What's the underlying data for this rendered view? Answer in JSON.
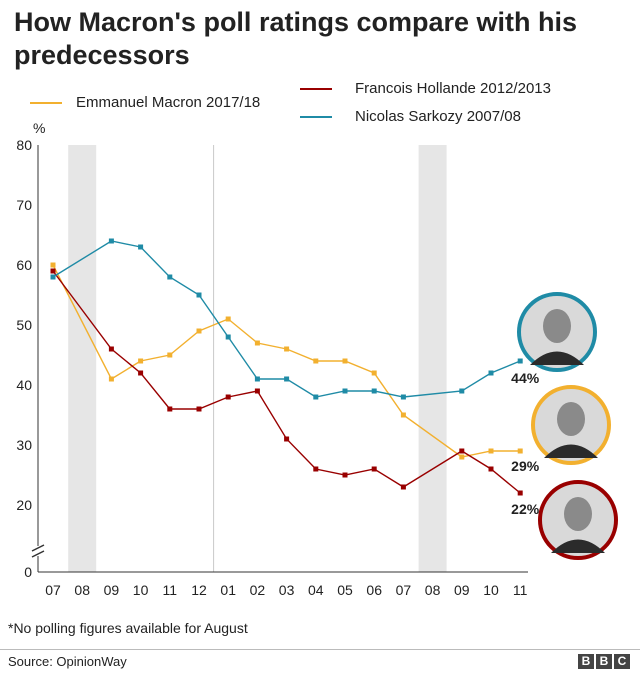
{
  "title": "How Macron's poll ratings compare with his predecessors",
  "legend": [
    {
      "label": "Emmanuel Macron 2017/18",
      "color": "#f2b02f"
    },
    {
      "label": "Francois Hollande 2012/2013",
      "color": "#990000"
    },
    {
      "label": "Nicolas Sarkozy 2007/08",
      "color": "#1f8ba6"
    }
  ],
  "y_unit_label": "%",
  "note": "*No polling figures available for August",
  "source": "Source: OpinionWay",
  "logo": [
    "B",
    "B",
    "C"
  ],
  "chart_data": {
    "type": "line",
    "title": "How Macron's poll ratings compare with his predecessors",
    "xlabel": "",
    "ylabel": "%",
    "ylim": [
      0,
      80
    ],
    "y_ticks": [
      0,
      20,
      30,
      40,
      50,
      60,
      70,
      80
    ],
    "y_axis_break": true,
    "categories": [
      "07",
      "08",
      "09",
      "10",
      "11",
      "12",
      "01",
      "02",
      "03",
      "04",
      "05",
      "06",
      "07",
      "08",
      "09",
      "10",
      "11"
    ],
    "shaded_months": [
      "08",
      "08"
    ],
    "year_divider_before": "01",
    "series": [
      {
        "name": "Emmanuel Macron 2017/18",
        "color": "#f2b02f",
        "x": [
          0,
          2,
          3,
          4,
          5,
          6,
          7,
          8,
          9,
          10,
          11,
          12,
          14,
          15,
          16
        ],
        "values": [
          60,
          41,
          44,
          45,
          49,
          51,
          47,
          46,
          44,
          44,
          42,
          35,
          28,
          29,
          29
        ],
        "end_label": "29%",
        "portrait": "Emmanuel Macron"
      },
      {
        "name": "Francois Hollande 2012/2013",
        "color": "#990000",
        "x": [
          0,
          2,
          3,
          4,
          5,
          6,
          7,
          8,
          9,
          10,
          11,
          12,
          14,
          15,
          16
        ],
        "values": [
          59,
          46,
          42,
          36,
          36,
          38,
          39,
          31,
          26,
          25,
          26,
          23,
          29,
          26,
          22
        ],
        "end_label": "22%",
        "portrait": "Francois Hollande"
      },
      {
        "name": "Nicolas Sarkozy 2007/08",
        "color": "#1f8ba6",
        "x": [
          0,
          2,
          3,
          4,
          5,
          6,
          7,
          8,
          9,
          10,
          11,
          12,
          14,
          15,
          16
        ],
        "values": [
          58,
          64,
          63,
          58,
          55,
          48,
          41,
          41,
          38,
          39,
          39,
          38,
          39,
          42,
          44
        ],
        "end_label": "44%",
        "portrait": "Nicolas Sarkozy"
      }
    ]
  }
}
